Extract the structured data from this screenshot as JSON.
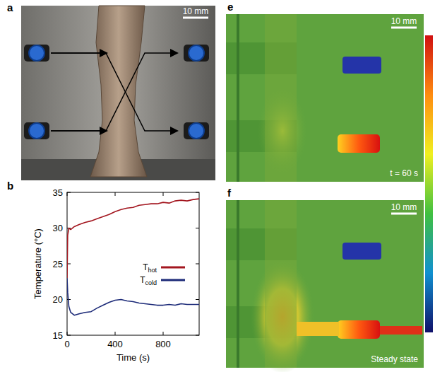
{
  "figure": {
    "photo_panels": [
      {
        "letter": "a",
        "scale_bar": "10 mm"
      },
      {
        "letter": "e",
        "scale_bar": "10 mm",
        "caption": "t = 60 s"
      },
      {
        "letter": "f",
        "scale_bar": "10 mm",
        "caption": "Steady state"
      }
    ]
  },
  "chart_data": {
    "type": "line",
    "title": "b",
    "x_label": "Time (s)",
    "y_label": "Temperature (°C)",
    "x": [
      0,
      5,
      15,
      30,
      60,
      100,
      150,
      200,
      250,
      300,
      350,
      400,
      450,
      500,
      550,
      600,
      650,
      700,
      750,
      800,
      850,
      900,
      950,
      1000,
      1050,
      1100
    ],
    "series": [
      {
        "name": "Thot",
        "color": "#a3161f",
        "values": [
          23,
          29,
          30,
          29.8,
          30.2,
          30.5,
          30.8,
          31,
          31.3,
          31.6,
          31.9,
          32.3,
          32.6,
          32.8,
          32.9,
          33.2,
          33.3,
          33.4,
          33.4,
          33.6,
          33.5,
          33.8,
          33.9,
          33.8,
          34,
          34.1
        ]
      },
      {
        "name": "Tcold",
        "color": "#1c2a78",
        "values": [
          23,
          21,
          19,
          18.2,
          17.8,
          18,
          18.2,
          18.3,
          18.8,
          19.2,
          19.6,
          19.9,
          20,
          19.8,
          19.7,
          19.5,
          19.4,
          19.3,
          19.2,
          19.2,
          19.3,
          19.2,
          19.4,
          19.3,
          19.3,
          19.3
        ]
      }
    ],
    "xlim": [
      0,
      1100
    ],
    "xticks": [
      0,
      400,
      800
    ],
    "ylim": [
      15,
      35
    ],
    "yticks": [
      15,
      20,
      25,
      30,
      35
    ],
    "grid": false,
    "legend": "right"
  }
}
